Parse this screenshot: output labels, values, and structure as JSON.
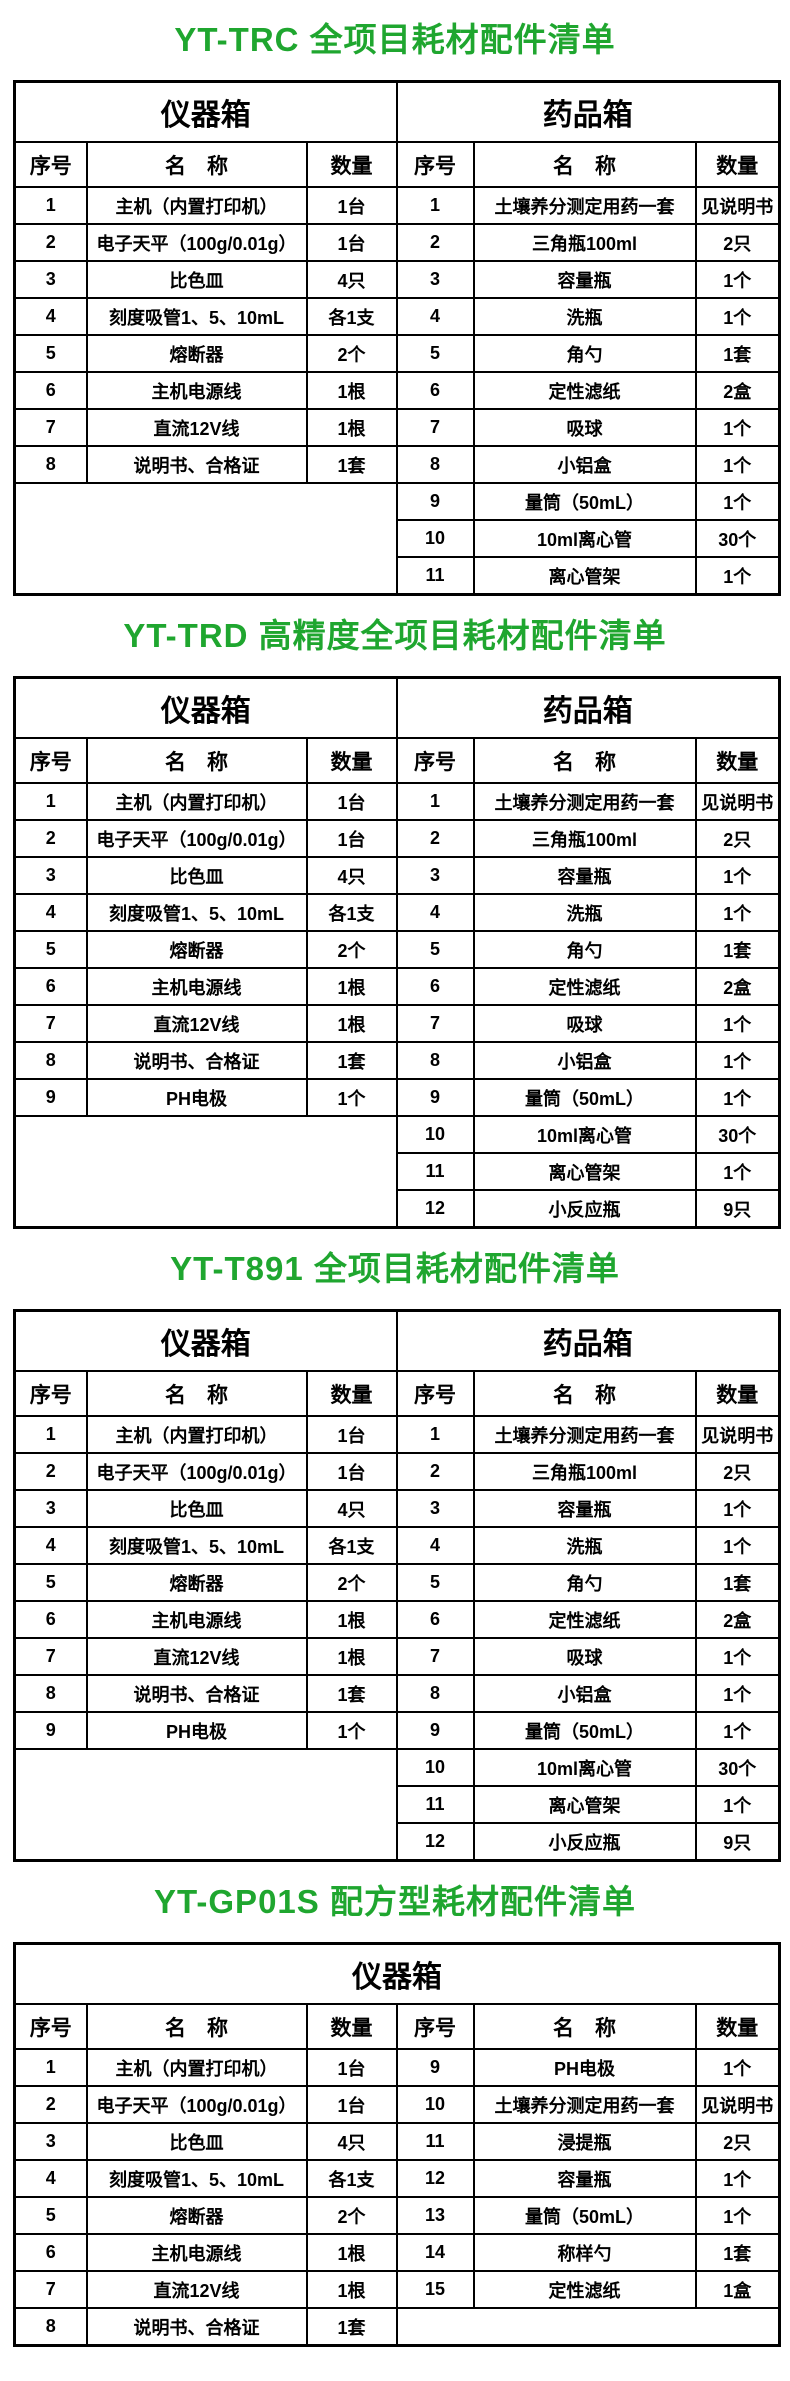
{
  "colors": {
    "title_green": "#1fa62f",
    "table_border": "#000000",
    "text": "#000000",
    "background": "#ffffff"
  },
  "shared": {
    "col_headers": [
      "序号",
      "名　称",
      "数量",
      "序号",
      "名　称",
      "数量"
    ]
  },
  "sections": [
    {
      "title": "YT-TRC 全项目耗材配件清单",
      "boxes": [
        {
          "label": "仪器箱",
          "span": 3
        },
        {
          "label": "药品箱",
          "span": 3
        }
      ],
      "left_rows": [
        [
          "1",
          "主机（内置打印机）",
          "1台"
        ],
        [
          "2",
          "电子天平（100g/0.01g）",
          "1台"
        ],
        [
          "3",
          "比色皿",
          "4只"
        ],
        [
          "4",
          "刻度吸管1、5、10mL",
          "各1支"
        ],
        [
          "5",
          "熔断器",
          "2个"
        ],
        [
          "6",
          "主机电源线",
          "1根"
        ],
        [
          "7",
          "直流12V线",
          "1根"
        ],
        [
          "8",
          "说明书、合格证",
          "1套"
        ]
      ],
      "right_rows": [
        [
          "1",
          "土壤养分测定用药一套",
          "见说明书"
        ],
        [
          "2",
          "三角瓶100ml",
          "2只"
        ],
        [
          "3",
          "容量瓶",
          "1个"
        ],
        [
          "4",
          "洗瓶",
          "1个"
        ],
        [
          "5",
          "角勺",
          "1套"
        ],
        [
          "6",
          "定性滤纸",
          "2盒"
        ],
        [
          "7",
          "吸球",
          "1个"
        ],
        [
          "8",
          "小铝盒",
          "1个"
        ],
        [
          "9",
          "量筒（50mL）",
          "1个"
        ],
        [
          "10",
          "10ml离心管",
          "30个"
        ],
        [
          "11",
          "离心管架",
          "1个"
        ]
      ]
    },
    {
      "title": "YT-TRD 高精度全项目耗材配件清单",
      "boxes": [
        {
          "label": "仪器箱",
          "span": 3
        },
        {
          "label": "药品箱",
          "span": 3
        }
      ],
      "left_rows": [
        [
          "1",
          "主机（内置打印机）",
          "1台"
        ],
        [
          "2",
          "电子天平（100g/0.01g）",
          "1台"
        ],
        [
          "3",
          "比色皿",
          "4只"
        ],
        [
          "4",
          "刻度吸管1、5、10mL",
          "各1支"
        ],
        [
          "5",
          "熔断器",
          "2个"
        ],
        [
          "6",
          "主机电源线",
          "1根"
        ],
        [
          "7",
          "直流12V线",
          "1根"
        ],
        [
          "8",
          "说明书、合格证",
          "1套"
        ],
        [
          "9",
          "PH电极",
          "1个"
        ]
      ],
      "right_rows": [
        [
          "1",
          "土壤养分测定用药一套",
          "见说明书"
        ],
        [
          "2",
          "三角瓶100ml",
          "2只"
        ],
        [
          "3",
          "容量瓶",
          "1个"
        ],
        [
          "4",
          "洗瓶",
          "1个"
        ],
        [
          "5",
          "角勺",
          "1套"
        ],
        [
          "6",
          "定性滤纸",
          "2盒"
        ],
        [
          "7",
          "吸球",
          "1个"
        ],
        [
          "8",
          "小铝盒",
          "1个"
        ],
        [
          "9",
          "量筒（50mL）",
          "1个"
        ],
        [
          "10",
          "10ml离心管",
          "30个"
        ],
        [
          "11",
          "离心管架",
          "1个"
        ],
        [
          "12",
          "小反应瓶",
          "9只"
        ]
      ]
    },
    {
      "title": "YT-T891 全项目耗材配件清单",
      "boxes": [
        {
          "label": "仪器箱",
          "span": 3
        },
        {
          "label": "药品箱",
          "span": 3
        }
      ],
      "left_rows": [
        [
          "1",
          "主机（内置打印机）",
          "1台"
        ],
        [
          "2",
          "电子天平（100g/0.01g）",
          "1台"
        ],
        [
          "3",
          "比色皿",
          "4只"
        ],
        [
          "4",
          "刻度吸管1、5、10mL",
          "各1支"
        ],
        [
          "5",
          "熔断器",
          "2个"
        ],
        [
          "6",
          "主机电源线",
          "1根"
        ],
        [
          "7",
          "直流12V线",
          "1根"
        ],
        [
          "8",
          "说明书、合格证",
          "1套"
        ],
        [
          "9",
          "PH电极",
          "1个"
        ]
      ],
      "right_rows": [
        [
          "1",
          "土壤养分测定用药一套",
          "见说明书"
        ],
        [
          "2",
          "三角瓶100ml",
          "2只"
        ],
        [
          "3",
          "容量瓶",
          "1个"
        ],
        [
          "4",
          "洗瓶",
          "1个"
        ],
        [
          "5",
          "角勺",
          "1套"
        ],
        [
          "6",
          "定性滤纸",
          "2盒"
        ],
        [
          "7",
          "吸球",
          "1个"
        ],
        [
          "8",
          "小铝盒",
          "1个"
        ],
        [
          "9",
          "量筒（50mL）",
          "1个"
        ],
        [
          "10",
          "10ml离心管",
          "30个"
        ],
        [
          "11",
          "离心管架",
          "1个"
        ],
        [
          "12",
          "小反应瓶",
          "9只"
        ]
      ]
    },
    {
      "title": "YT-GP01S 配方型耗材配件清单",
      "boxes": [
        {
          "label": "仪器箱",
          "span": 6
        }
      ],
      "left_rows": [
        [
          "1",
          "主机（内置打印机）",
          "1台"
        ],
        [
          "2",
          "电子天平（100g/0.01g）",
          "1台"
        ],
        [
          "3",
          "比色皿",
          "4只"
        ],
        [
          "4",
          "刻度吸管1、5、10mL",
          "各1支"
        ],
        [
          "5",
          "熔断器",
          "2个"
        ],
        [
          "6",
          "主机电源线",
          "1根"
        ],
        [
          "7",
          "直流12V线",
          "1根"
        ],
        [
          "8",
          "说明书、合格证",
          "1套"
        ]
      ],
      "right_rows": [
        [
          "9",
          "PH电极",
          "1个"
        ],
        [
          "10",
          "土壤养分测定用药一套",
          "见说明书"
        ],
        [
          "11",
          "浸提瓶",
          "2只"
        ],
        [
          "12",
          "容量瓶",
          "1个"
        ],
        [
          "13",
          "量筒（50mL）",
          "1个"
        ],
        [
          "14",
          "称样勺",
          "1套"
        ],
        [
          "15",
          "定性滤纸",
          "1盒"
        ]
      ]
    }
  ]
}
